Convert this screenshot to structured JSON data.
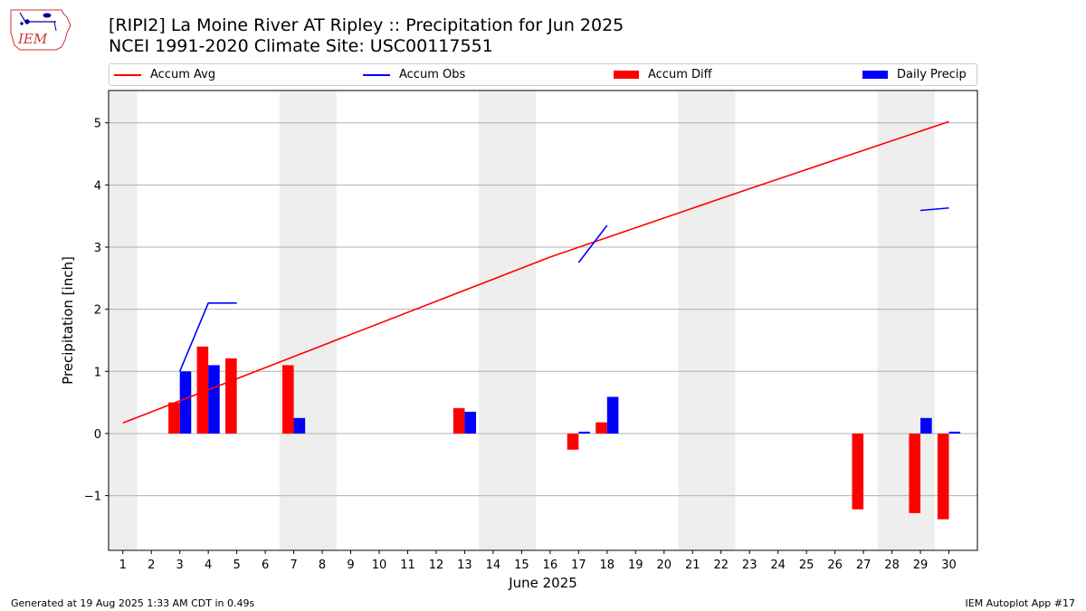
{
  "logo": {
    "text": "IEM"
  },
  "title_line1": "[RIPI2] La Moine River  AT Ripley :: Precipitation for Jun 2025",
  "title_line2": "NCEI 1991-2020 Climate Site: USC00117551",
  "footer": {
    "left": "Generated at 19 Aug 2025 1:33 AM CDT in 0.49s",
    "right": "IEM Autoplot App #17"
  },
  "colors": {
    "accum_avg": "#ff0000",
    "accum_obs": "#0000ff",
    "accum_diff": "#ff0000",
    "daily_precip": "#0000ff",
    "weekend_shade": "#eeeeee",
    "grid": "#b0b0b0"
  },
  "chart_data": {
    "type": "bar",
    "xlabel": "June 2025",
    "ylabel": "Precipitation [inch]",
    "xlim": [
      0.5,
      31
    ],
    "ylim": [
      -1.88,
      5.52
    ],
    "yticks": [
      -1,
      0,
      1,
      2,
      3,
      4,
      5
    ],
    "ytick_labels": [
      "−1",
      "0",
      "1",
      "2",
      "3",
      "4",
      "5"
    ],
    "grid": "horizontal",
    "legend_placement": "top",
    "days": [
      1,
      2,
      3,
      4,
      5,
      6,
      7,
      8,
      9,
      10,
      11,
      12,
      13,
      14,
      15,
      16,
      17,
      18,
      19,
      20,
      21,
      22,
      23,
      24,
      25,
      26,
      27,
      28,
      29,
      30
    ],
    "shaded_days": [
      1,
      7,
      8,
      14,
      15,
      21,
      22,
      28,
      29
    ],
    "legend": [
      {
        "name": "Accum Avg",
        "kind": "line",
        "color": "#ff0000"
      },
      {
        "name": "Accum Obs",
        "kind": "line",
        "color": "#0000ff"
      },
      {
        "name": "Accum Diff",
        "kind": "bar",
        "color": "#ff0000"
      },
      {
        "name": "Daily Precip",
        "kind": "bar",
        "color": "#0000ff"
      }
    ],
    "series": [
      {
        "name": "Accum Avg",
        "type": "line",
        "x": [
          1,
          16,
          23,
          30
        ],
        "y": [
          0.17,
          2.84,
          3.94,
          5.02
        ]
      },
      {
        "name": "Accum Obs",
        "type": "line",
        "segments": [
          {
            "x": [
              3,
              4,
              5
            ],
            "y": [
              1.0,
              2.1,
              2.1
            ]
          },
          {
            "x": [
              17,
              18
            ],
            "y": [
              2.75,
              3.35
            ]
          },
          {
            "x": [
              29,
              30
            ],
            "y": [
              3.59,
              3.63
            ]
          }
        ]
      },
      {
        "name": "Accum Diff",
        "type": "bar",
        "x": [
          3,
          4,
          5,
          7,
          13,
          17,
          18,
          27,
          29,
          30
        ],
        "y": [
          0.5,
          1.4,
          1.21,
          1.1,
          0.41,
          -0.26,
          0.18,
          -1.22,
          -1.28,
          -1.38
        ]
      },
      {
        "name": "Daily Precip",
        "type": "bar",
        "x": [
          3,
          4,
          7,
          13,
          17,
          18,
          29,
          30
        ],
        "y": [
          1.0,
          1.1,
          0.25,
          0.35,
          0.03,
          0.59,
          0.25,
          0.03
        ]
      }
    ]
  }
}
